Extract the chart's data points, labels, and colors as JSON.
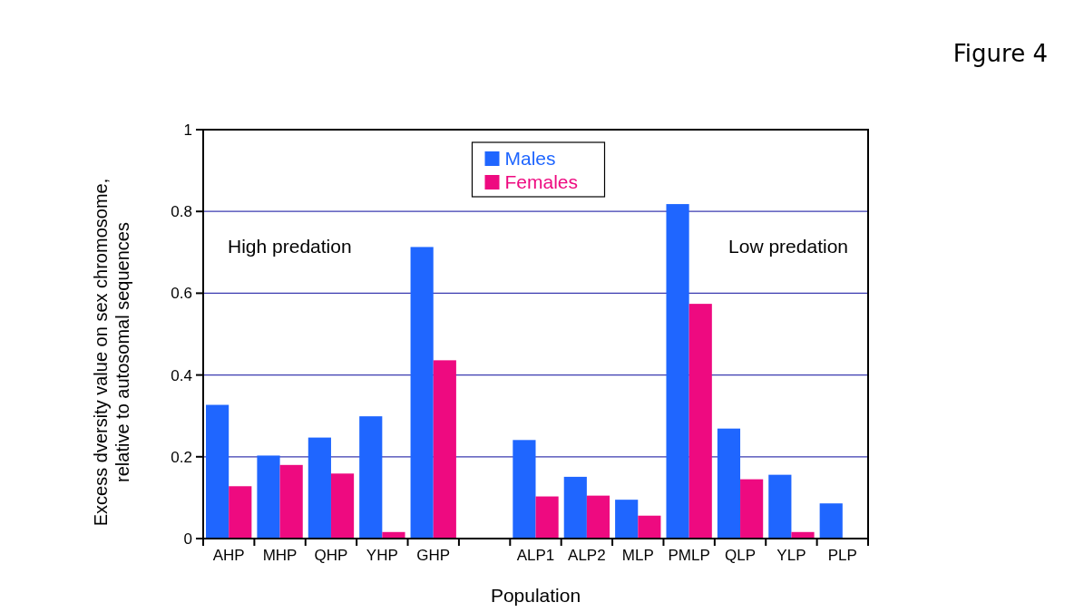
{
  "chart_data": {
    "type": "bar",
    "title": "Figure 4",
    "xlabel": "Population",
    "ylabel": "Excess dversity value on sex chromosome,\nrelative to autosomal sequences",
    "categories": [
      "AHP",
      "MHP",
      "QHP",
      "YHP",
      "GHP",
      null,
      "ALP1",
      "ALP2",
      "MLP",
      "PMLP",
      "QLP",
      "YLP",
      "PLP"
    ],
    "series": [
      {
        "name": "Males",
        "color": "#1f66ff",
        "values": [
          0.327,
          0.203,
          0.247,
          0.299,
          0.713,
          null,
          0.241,
          0.151,
          0.095,
          0.818,
          0.269,
          0.156,
          0.086
        ]
      },
      {
        "name": "Females",
        "color": "#ee0a80",
        "values": [
          0.128,
          0.18,
          0.159,
          0.016,
          0.436,
          null,
          0.103,
          0.105,
          0.056,
          0.574,
          0.145,
          0.016,
          null
        ]
      }
    ],
    "ylim": [
      0,
      1
    ],
    "yticks": [
      0,
      0.2,
      0.4,
      0.6,
      0.8,
      1
    ],
    "grid": "y",
    "legend": "top",
    "annotations": [
      "High predation",
      "Low predation"
    ]
  }
}
